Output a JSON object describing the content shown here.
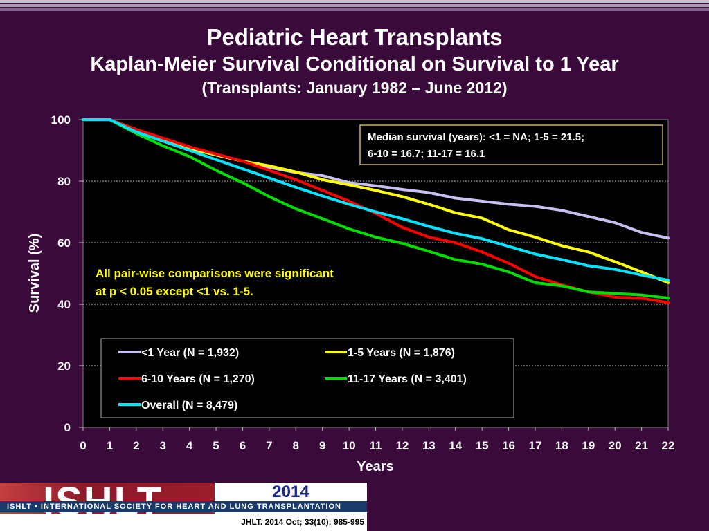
{
  "chart_data": {
    "type": "line",
    "title": "Pediatric Heart Transplants",
    "subtitle": "Kaplan-Meier Survival Conditional on Survival to 1 Year",
    "subsubtitle": "(Transplants: January 1982 – June 2012)",
    "xlabel": "Years",
    "ylabel": "Survival (%)",
    "xlim": [
      0,
      22
    ],
    "ylim": [
      0,
      100
    ],
    "xticks": [
      "0",
      "1",
      "2",
      "3",
      "4",
      "5",
      "6",
      "7",
      "8",
      "9",
      "10",
      "11",
      "12",
      "13",
      "14",
      "15",
      "16",
      "17",
      "18",
      "19",
      "20",
      "21",
      "22"
    ],
    "yticks": [
      "0",
      "20",
      "40",
      "60",
      "80",
      "100"
    ],
    "grid": "horizontal dashed",
    "median_box": [
      "Median survival (years): <1 = NA; 1-5 = 21.5;",
      "6-10 = 16.7; 11-17 = 16.1"
    ],
    "significance_note": [
      "All pair-wise comparisons were significant",
      "at p < 0.05 except <1 vs. 1-5."
    ],
    "legend_position": "bottom-center",
    "series": [
      {
        "name": "<1 Year (N = 1,932)",
        "color": "#c8c0f0",
        "x": [
          0,
          1,
          2,
          3,
          4,
          5,
          6,
          7,
          8,
          9,
          10,
          11,
          12,
          13,
          14,
          15,
          16,
          17,
          18,
          19,
          20,
          21,
          22
        ],
        "y": [
          100,
          100,
          96.5,
          93.5,
          91,
          88.5,
          86.5,
          84.5,
          82.8,
          81.8,
          79.5,
          78.5,
          77.3,
          76.3,
          74.5,
          73.5,
          72.5,
          71.8,
          70.5,
          68.5,
          66.5,
          63.3,
          61.5
        ]
      },
      {
        "name": "1-5 Years (N = 1,876)",
        "color": "#ffff00",
        "x": [
          0,
          1,
          2,
          3,
          4,
          5,
          6,
          7,
          8,
          9,
          10,
          11,
          12,
          13,
          14,
          15,
          16,
          17,
          18,
          19,
          20,
          21,
          22
        ],
        "y": [
          100,
          100,
          96.8,
          93.5,
          90.5,
          88.5,
          86.5,
          85,
          83,
          80.5,
          78.8,
          77,
          75,
          72.5,
          69.7,
          68,
          64.2,
          61.8,
          59,
          57,
          53.8,
          50.5,
          47
        ]
      },
      {
        "name": "6-10 Years (N = 1,270)",
        "color": "#ff0000",
        "x": [
          0,
          1,
          2,
          3,
          4,
          5,
          6,
          7,
          8,
          9,
          10,
          11,
          12,
          13,
          14,
          15,
          16,
          17,
          18,
          19,
          20,
          21,
          22
        ],
        "y": [
          100,
          100,
          96.8,
          94,
          91.2,
          88.8,
          86.5,
          83.5,
          80.5,
          77,
          73.5,
          69.5,
          65,
          61.8,
          60,
          57,
          53.3,
          49,
          46.3,
          44,
          42.3,
          42,
          40.5
        ]
      },
      {
        "name": "11-17 Years (N = 3,401)",
        "color": "#00dd00",
        "x": [
          0,
          1,
          2,
          3,
          4,
          5,
          6,
          7,
          8,
          9,
          10,
          11,
          12,
          13,
          14,
          15,
          16,
          17,
          18,
          19,
          20,
          21,
          22
        ],
        "y": [
          100,
          100,
          95.5,
          91.5,
          88,
          83.5,
          79.5,
          75,
          71,
          67.8,
          64.5,
          61.8,
          59.8,
          57.2,
          54.5,
          53,
          50.5,
          47,
          46,
          44,
          43.5,
          43,
          42
        ]
      },
      {
        "name": "Overall (N = 8,479)",
        "color": "#00e5ff",
        "x": [
          0,
          1,
          2,
          3,
          4,
          5,
          6,
          7,
          8,
          9,
          10,
          11,
          12,
          13,
          14,
          15,
          16,
          17,
          18,
          19,
          20,
          21,
          22
        ],
        "y": [
          100,
          100,
          96,
          93,
          90,
          87,
          84,
          81,
          78,
          75.2,
          72.5,
          70,
          67.8,
          65.3,
          63,
          61.3,
          58.8,
          56.3,
          54.5,
          52.5,
          51.3,
          49.5,
          47.8
        ]
      }
    ]
  },
  "footer": {
    "logo": "ISHLT",
    "organization": "ISHLT • INTERNATIONAL SOCIETY FOR HEART AND LUNG TRANSPLANTATION",
    "year": "2014",
    "citation": "JHLT. 2014 Oct; 33(10): 985-995"
  }
}
